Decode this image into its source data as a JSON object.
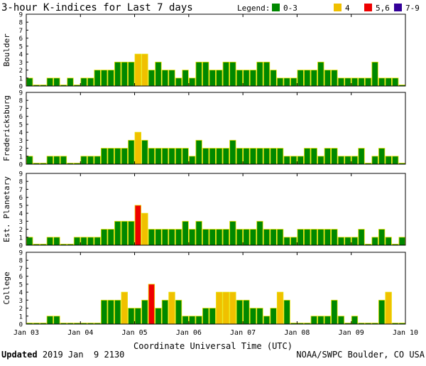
{
  "title": "3-hour K-indices for Last 7 days",
  "legend": {
    "label": "Legend:",
    "items": [
      {
        "label": "0-3",
        "color": "#008800"
      },
      {
        "label": "4",
        "color": "#f0c000"
      },
      {
        "label": "5,6",
        "color": "#ee0000"
      },
      {
        "label": "7-9",
        "color": "#330099"
      }
    ]
  },
  "footer": {
    "updated_label": "Updated",
    "updated_value": "2019 Jan  9 2130",
    "credit": "NOAA/SWPC Boulder, CO USA"
  },
  "chart_data": {
    "type": "bar",
    "xlabel": "Coordinate Universal Time (UTC)",
    "ylim": [
      0,
      9
    ],
    "y_ticks": [
      "0",
      "1",
      "2",
      "3",
      "4",
      "5",
      "6",
      "7",
      "8",
      "9"
    ],
    "x_ticks": [
      "Jan 03",
      "Jan 04",
      "Jan 05",
      "Jan 06",
      "Jan 07",
      "Jan 08",
      "Jan 09",
      "Jan 10"
    ],
    "bins_per_day": 8,
    "panels": [
      {
        "name": "Boulder",
        "values": [
          1,
          0,
          0,
          1,
          1,
          0,
          1,
          0,
          1,
          1,
          2,
          2,
          2,
          3,
          3,
          3,
          4,
          4,
          2,
          3,
          2,
          2,
          1,
          2,
          1,
          3,
          3,
          2,
          2,
          3,
          3,
          2,
          2,
          2,
          3,
          3,
          2,
          1,
          1,
          1,
          2,
          2,
          2,
          3,
          2,
          2,
          1,
          1,
          1,
          1,
          1,
          3,
          1,
          1,
          1,
          0
        ]
      },
      {
        "name": "Fredericksburg",
        "values": [
          1,
          0,
          0,
          1,
          1,
          1,
          0,
          0,
          1,
          1,
          1,
          2,
          2,
          2,
          2,
          3,
          4,
          3,
          2,
          2,
          2,
          2,
          2,
          2,
          1,
          3,
          2,
          2,
          2,
          2,
          3,
          2,
          2,
          2,
          2,
          2,
          2,
          2,
          1,
          1,
          1,
          2,
          2,
          1,
          2,
          2,
          1,
          1,
          1,
          2,
          0,
          1,
          2,
          1,
          1,
          0
        ]
      },
      {
        "name": "Est. Planetary",
        "values": [
          1,
          0,
          0,
          1,
          1,
          0,
          0,
          1,
          1,
          1,
          1,
          2,
          2,
          3,
          3,
          3,
          5,
          4,
          2,
          2,
          2,
          2,
          2,
          3,
          2,
          3,
          2,
          2,
          2,
          2,
          3,
          2,
          2,
          2,
          3,
          2,
          2,
          2,
          1,
          1,
          2,
          2,
          2,
          2,
          2,
          2,
          1,
          1,
          1,
          2,
          0,
          1,
          2,
          1,
          0,
          1
        ]
      },
      {
        "name": "College",
        "values": [
          0,
          0,
          0,
          1,
          1,
          0,
          0,
          0,
          0,
          0,
          0,
          3,
          3,
          3,
          4,
          2,
          2,
          3,
          5,
          2,
          3,
          4,
          3,
          1,
          1,
          1,
          2,
          2,
          4,
          4,
          4,
          3,
          3,
          2,
          2,
          1,
          2,
          4,
          3,
          0,
          0,
          0,
          1,
          1,
          1,
          3,
          1,
          0,
          1,
          0,
          0,
          0,
          3,
          4,
          0,
          0
        ]
      }
    ]
  }
}
